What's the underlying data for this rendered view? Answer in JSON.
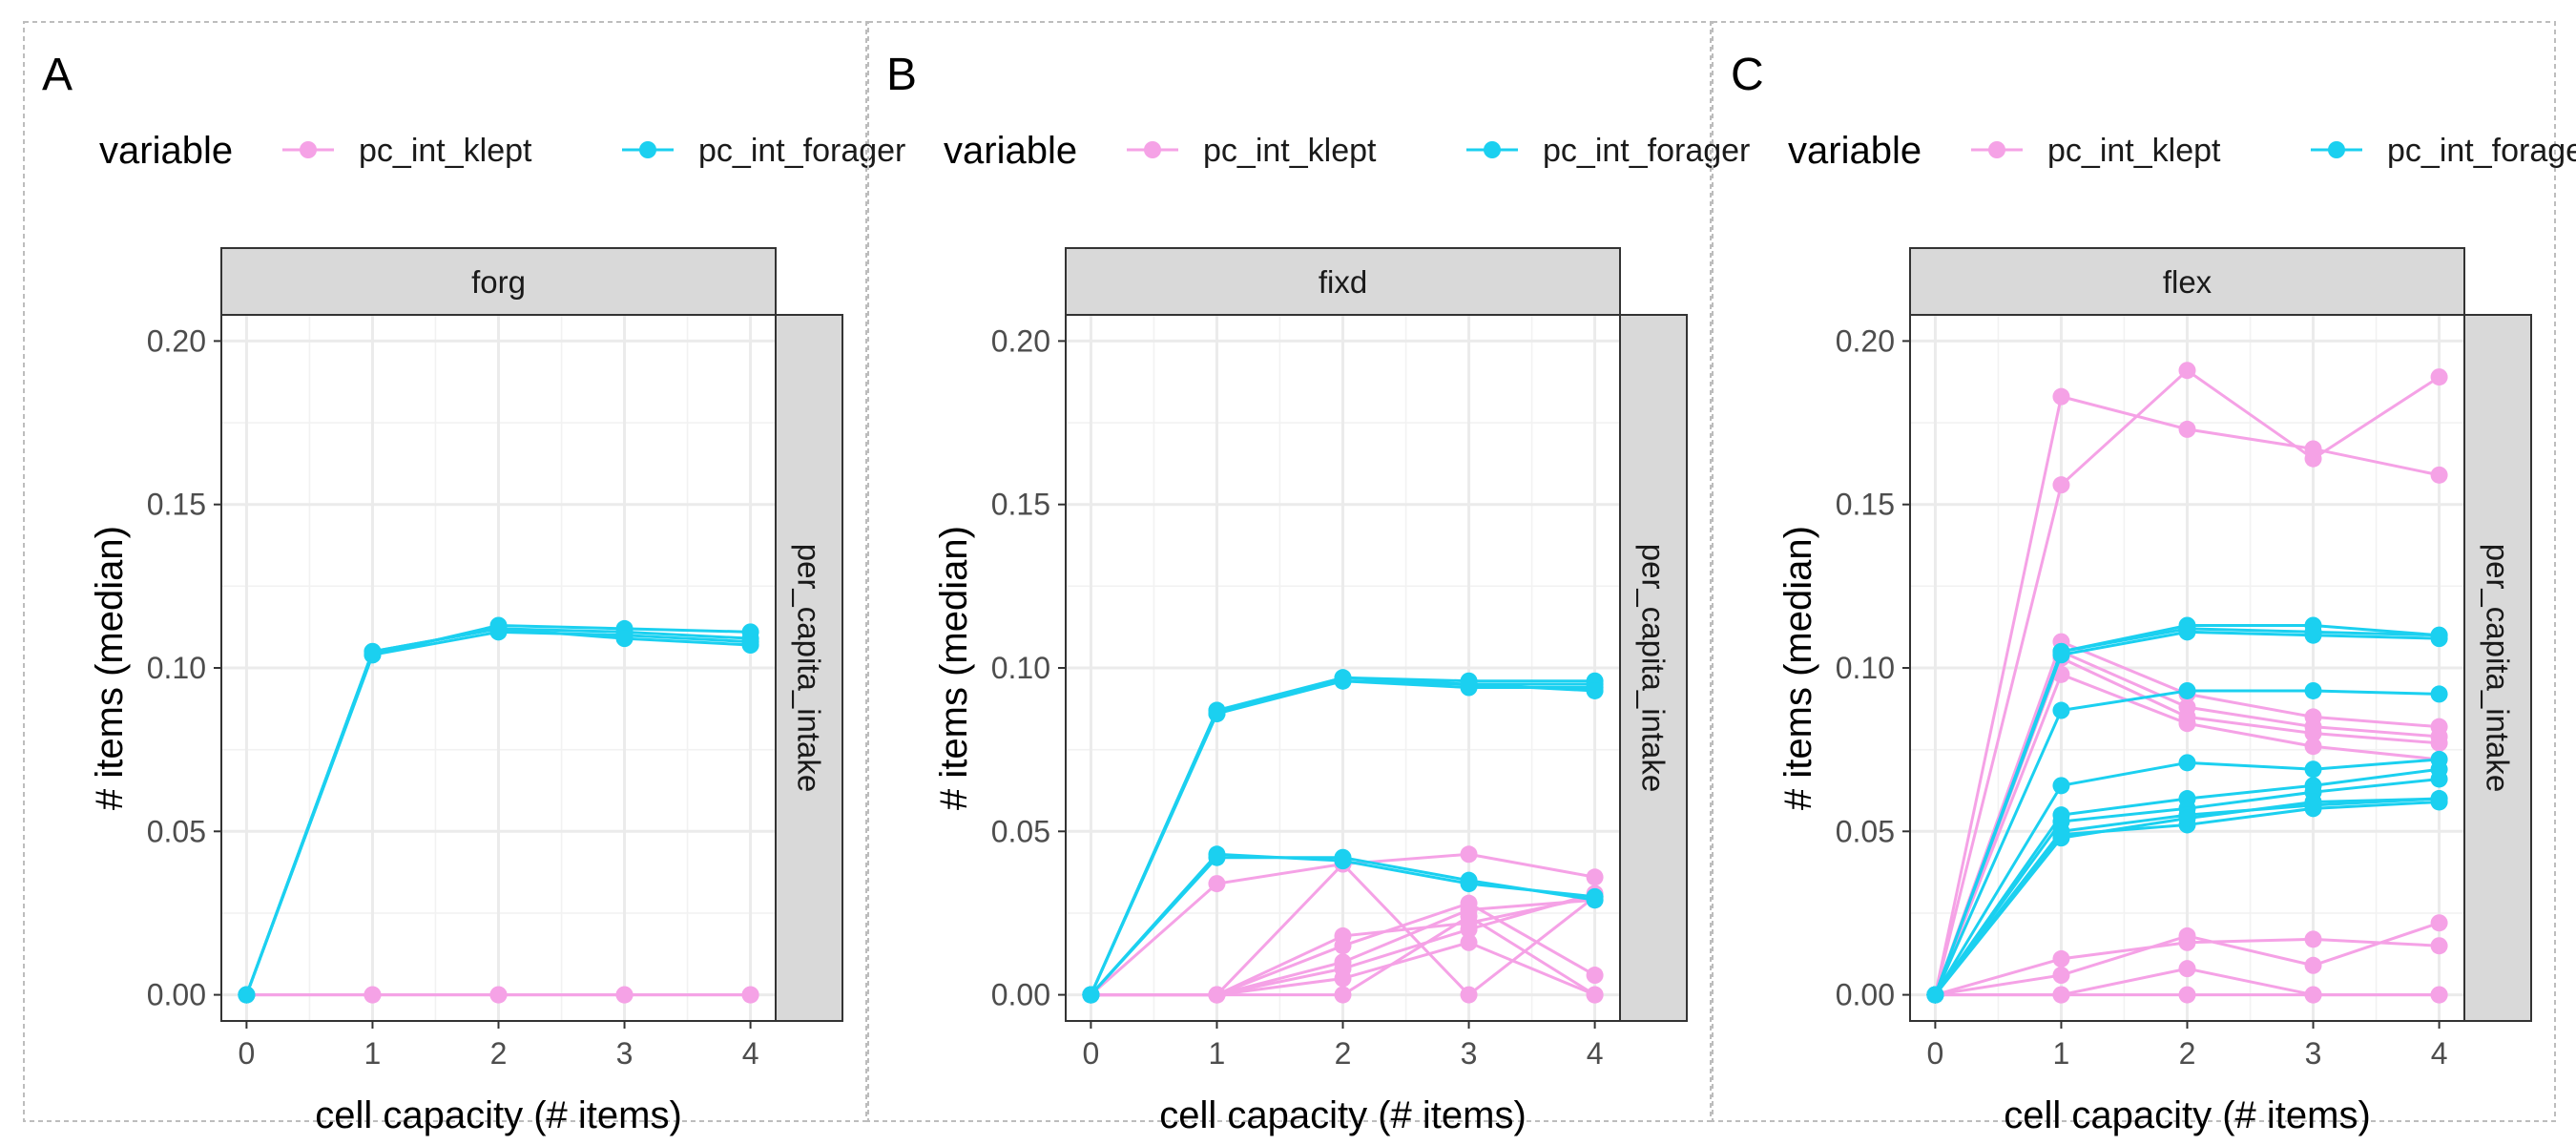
{
  "colors": {
    "pc_int_klept": "#f5a2e6",
    "pc_int_forager": "#1bd0f0"
  },
  "chart_data": [
    {
      "type": "line",
      "panel": "A",
      "facet": "forg",
      "row_strip": "per_capita_intake",
      "xlabel": "cell capacity (# items)",
      "ylabel": "# items (median)",
      "x": [
        0,
        1,
        2,
        3,
        4
      ],
      "xticks": [
        "0",
        "1",
        "2",
        "3",
        "4"
      ],
      "yticks": [
        "0.00",
        "0.05",
        "0.10",
        "0.15",
        "0.20"
      ],
      "xlim": [
        -0.2,
        4.2
      ],
      "ylim": [
        -0.008,
        0.208
      ],
      "legend": {
        "title": "variable",
        "entries": [
          "pc_int_klept",
          "pc_int_forager"
        ],
        "placement": "top"
      },
      "series": [
        {
          "variable": "pc_int_klept",
          "values": [
            0,
            0,
            0,
            0,
            0
          ]
        },
        {
          "variable": "pc_int_klept",
          "values": [
            0,
            0,
            0,
            0,
            0
          ]
        },
        {
          "variable": "pc_int_forager",
          "values": [
            0,
            0.104,
            0.113,
            0.112,
            0.111
          ]
        },
        {
          "variable": "pc_int_forager",
          "values": [
            0,
            0.105,
            0.112,
            0.111,
            0.109
          ]
        },
        {
          "variable": "pc_int_forager",
          "values": [
            0,
            0.104,
            0.111,
            0.11,
            0.108
          ]
        },
        {
          "variable": "pc_int_forager",
          "values": [
            0,
            0.105,
            0.112,
            0.109,
            0.107
          ]
        }
      ]
    },
    {
      "type": "line",
      "panel": "B",
      "facet": "fixd",
      "row_strip": "per_capita_intake",
      "xlabel": "cell capacity (# items)",
      "ylabel": "# items (median)",
      "x": [
        0,
        1,
        2,
        3,
        4
      ],
      "xticks": [
        "0",
        "1",
        "2",
        "3",
        "4"
      ],
      "yticks": [
        "0.00",
        "0.05",
        "0.10",
        "0.15",
        "0.20"
      ],
      "xlim": [
        -0.2,
        4.2
      ],
      "ylim": [
        -0.008,
        0.208
      ],
      "legend": {
        "title": "variable",
        "entries": [
          "pc_int_klept",
          "pc_int_forager"
        ],
        "placement": "top"
      },
      "series": [
        {
          "variable": "pc_int_klept",
          "values": [
            0,
            0.034,
            0.04,
            0.043,
            0.036
          ]
        },
        {
          "variable": "pc_int_klept",
          "values": [
            0,
            0,
            0.018,
            0.022,
            0.03
          ]
        },
        {
          "variable": "pc_int_klept",
          "values": [
            0,
            0,
            0.015,
            0.028,
            0.006
          ]
        },
        {
          "variable": "pc_int_klept",
          "values": [
            0,
            0,
            0.01,
            0.026,
            0.029
          ]
        },
        {
          "variable": "pc_int_klept",
          "values": [
            0,
            0,
            0.008,
            0.02,
            0.031
          ]
        },
        {
          "variable": "pc_int_klept",
          "values": [
            0,
            0,
            0.005,
            0.016,
            0
          ]
        },
        {
          "variable": "pc_int_klept",
          "values": [
            0,
            0,
            0.04,
            0,
            0.03
          ]
        },
        {
          "variable": "pc_int_klept",
          "values": [
            0,
            0,
            0,
            0.024,
            0
          ]
        },
        {
          "variable": "pc_int_forager",
          "values": [
            0,
            0.042,
            0.042,
            0.035,
            0.029
          ]
        },
        {
          "variable": "pc_int_forager",
          "values": [
            0,
            0.043,
            0.041,
            0.034,
            0.03
          ]
        },
        {
          "variable": "pc_int_forager",
          "values": [
            0,
            0.086,
            0.097,
            0.096,
            0.096
          ]
        },
        {
          "variable": "pc_int_forager",
          "values": [
            0,
            0.087,
            0.096,
            0.095,
            0.095
          ]
        },
        {
          "variable": "pc_int_forager",
          "values": [
            0,
            0.086,
            0.096,
            0.094,
            0.094
          ]
        },
        {
          "variable": "pc_int_forager",
          "values": [
            0,
            0.087,
            0.097,
            0.095,
            0.093
          ]
        }
      ]
    },
    {
      "type": "line",
      "panel": "C",
      "facet": "flex",
      "row_strip": "per_capita_intake",
      "xlabel": "cell capacity (# items)",
      "ylabel": "# items (median)",
      "x": [
        0,
        1,
        2,
        3,
        4
      ],
      "xticks": [
        "0",
        "1",
        "2",
        "3",
        "4"
      ],
      "yticks": [
        "0.00",
        "0.05",
        "0.10",
        "0.15",
        "0.20"
      ],
      "xlim": [
        -0.2,
        4.2
      ],
      "ylim": [
        -0.008,
        0.208
      ],
      "legend": {
        "title": "variable",
        "entries": [
          "pc_int_klept",
          "pc_int_forager"
        ],
        "placement": "top"
      },
      "series": [
        {
          "variable": "pc_int_klept",
          "values": [
            0,
            0.183,
            0.173,
            0.167,
            0.159
          ]
        },
        {
          "variable": "pc_int_klept",
          "values": [
            0,
            0.156,
            0.191,
            0.164,
            0.189
          ]
        },
        {
          "variable": "pc_int_klept",
          "values": [
            0,
            0.108,
            0.092,
            0.085,
            0.082
          ]
        },
        {
          "variable": "pc_int_klept",
          "values": [
            0,
            0.105,
            0.088,
            0.082,
            0.079
          ]
        },
        {
          "variable": "pc_int_klept",
          "values": [
            0,
            0.103,
            0.085,
            0.08,
            0.077
          ]
        },
        {
          "variable": "pc_int_klept",
          "values": [
            0,
            0.098,
            0.083,
            0.076,
            0.072
          ]
        },
        {
          "variable": "pc_int_klept",
          "values": [
            0,
            0.011,
            0.016,
            0.017,
            0.015
          ]
        },
        {
          "variable": "pc_int_klept",
          "values": [
            0,
            0.006,
            0.018,
            0.009,
            0.022
          ]
        },
        {
          "variable": "pc_int_klept",
          "values": [
            0,
            0,
            0.008,
            0,
            0
          ]
        },
        {
          "variable": "pc_int_klept",
          "values": [
            0,
            0,
            0,
            0,
            0
          ]
        },
        {
          "variable": "pc_int_forager",
          "values": [
            0,
            0.105,
            0.113,
            0.113,
            0.11
          ]
        },
        {
          "variable": "pc_int_forager",
          "values": [
            0,
            0.104,
            0.111,
            0.11,
            0.109
          ]
        },
        {
          "variable": "pc_int_forager",
          "values": [
            0,
            0.105,
            0.112,
            0.111,
            0.11
          ]
        },
        {
          "variable": "pc_int_forager",
          "values": [
            0,
            0.087,
            0.093,
            0.093,
            0.092
          ]
        },
        {
          "variable": "pc_int_forager",
          "values": [
            0,
            0.064,
            0.071,
            0.069,
            0.072
          ]
        },
        {
          "variable": "pc_int_forager",
          "values": [
            0,
            0.055,
            0.06,
            0.064,
            0.069
          ]
        },
        {
          "variable": "pc_int_forager",
          "values": [
            0,
            0.053,
            0.057,
            0.062,
            0.066
          ]
        },
        {
          "variable": "pc_int_forager",
          "values": [
            0,
            0.05,
            0.055,
            0.058,
            0.06
          ]
        },
        {
          "variable": "pc_int_forager",
          "values": [
            0,
            0.049,
            0.052,
            0.057,
            0.059
          ]
        },
        {
          "variable": "pc_int_forager",
          "values": [
            0,
            0.048,
            0.054,
            0.059,
            0.06
          ]
        }
      ]
    }
  ]
}
